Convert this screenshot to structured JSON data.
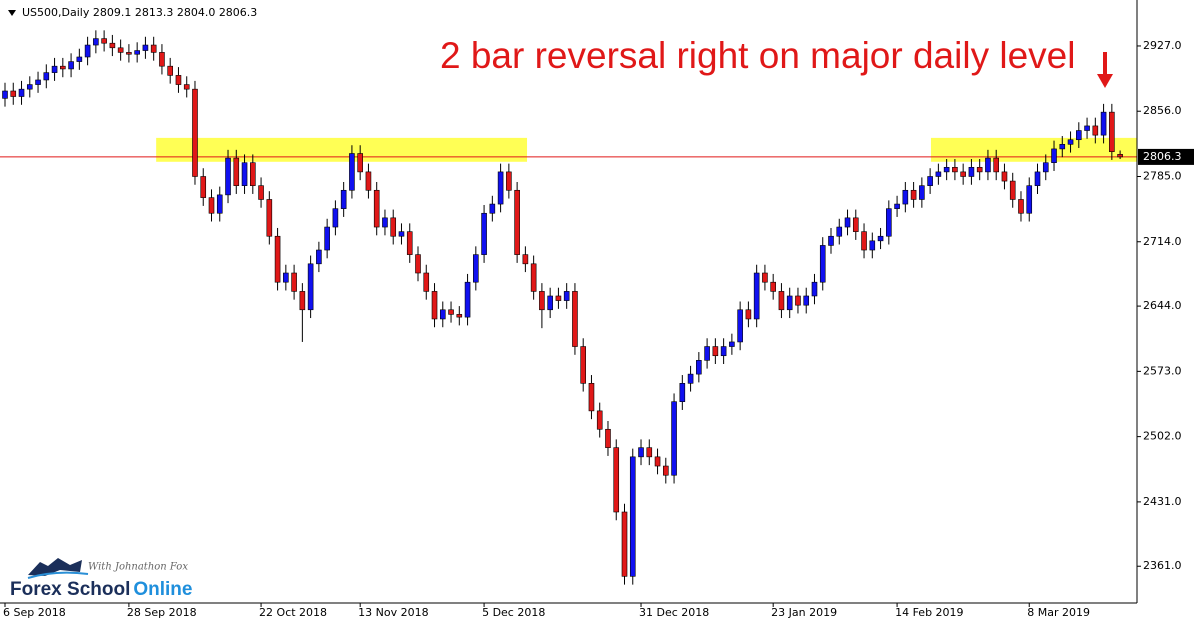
{
  "chart_data": {
    "type": "candlestick",
    "header": "US500,Daily  2809.1 2813.3 2804.0 2806.3",
    "annotation": "2 bar reversal right on major daily level",
    "logo": {
      "tagline": "With Johnathon Fox",
      "name": "Forex School",
      "name_accent": "Online"
    },
    "up_color": "#1010f0",
    "down_color": "#e01818",
    "zone_color": "#ffff55",
    "last_price_color": "#e01818",
    "ylim": [
      2321,
      2977
    ],
    "yticks": [
      {
        "value": 2361,
        "label": "2361.0"
      },
      {
        "value": 2431,
        "label": "2431.0"
      },
      {
        "value": 2502,
        "label": "2502.0"
      },
      {
        "value": 2573,
        "label": "2573.0"
      },
      {
        "value": 2644,
        "label": "2644.0"
      },
      {
        "value": 2714,
        "label": "2714.0"
      },
      {
        "value": 2785,
        "label": "2785.0"
      },
      {
        "value": 2856,
        "label": "2856.0"
      },
      {
        "value": 2927,
        "label": "2927.0"
      }
    ],
    "last_price": 2806.3,
    "zones": [
      {
        "low": 2801,
        "high": 2827
      },
      {
        "low": 2801,
        "high": 2827
      }
    ],
    "categories": [
      "6 Sep 2018",
      null,
      null,
      null,
      null,
      null,
      null,
      null,
      null,
      null,
      null,
      null,
      null,
      null,
      null,
      "28 Sep 2018",
      null,
      null,
      null,
      null,
      null,
      null,
      null,
      null,
      null,
      null,
      null,
      null,
      null,
      null,
      null,
      "22 Oct 2018",
      null,
      null,
      null,
      null,
      null,
      null,
      null,
      null,
      null,
      null,
      null,
      "13 Nov 2018",
      null,
      null,
      null,
      null,
      null,
      null,
      null,
      null,
      null,
      null,
      null,
      null,
      null,
      null,
      "5 Dec 2018",
      null,
      null,
      null,
      null,
      null,
      null,
      null,
      null,
      null,
      null,
      null,
      null,
      null,
      null,
      null,
      null,
      null,
      null,
      "31 Dec 2018",
      null,
      null,
      null,
      null,
      null,
      null,
      null,
      null,
      null,
      null,
      null,
      null,
      null,
      null,
      null,
      "23 Jan 2019",
      null,
      null,
      null,
      null,
      null,
      null,
      null,
      null,
      null,
      null,
      null,
      null,
      null,
      null,
      "14 Feb 2019",
      null,
      null,
      null,
      null,
      null,
      null,
      null,
      null,
      null,
      null,
      null,
      null,
      null,
      null,
      null,
      "8 Mar 2019",
      null,
      null,
      null,
      null,
      null,
      null,
      null,
      null,
      null,
      null,
      null
    ],
    "open": [
      2870,
      2878,
      2872,
      2880,
      2885,
      2890,
      2898,
      2905,
      2902,
      2910,
      2915,
      2928,
      2935,
      2930,
      2925,
      2920,
      2918,
      2922,
      2928,
      2920,
      2905,
      2895,
      2885,
      2880,
      2785,
      2762,
      2745,
      2765,
      2805,
      2775,
      2800,
      2775,
      2760,
      2720,
      2670,
      2680,
      2660,
      2640,
      2690,
      2705,
      2730,
      2750,
      2770,
      2810,
      2790,
      2770,
      2730,
      2740,
      2720,
      2725,
      2700,
      2680,
      2660,
      2630,
      2640,
      2635,
      2632,
      2670,
      2700,
      2745,
      2755,
      2790,
      2770,
      2700,
      2690,
      2660,
      2640,
      2655,
      2650,
      2660,
      2600,
      2560,
      2530,
      2510,
      2490,
      2420,
      2350,
      2480,
      2490,
      2480,
      2470,
      2460,
      2540,
      2560,
      2570,
      2585,
      2600,
      2590,
      2600,
      2605,
      2640,
      2630,
      2680,
      2670,
      2660,
      2640,
      2655,
      2645,
      2655,
      2670,
      2710,
      2720,
      2730,
      2740,
      2725,
      2705,
      2715,
      2720,
      2750,
      2755,
      2770,
      2760,
      2775,
      2785,
      2790,
      2795,
      2790,
      2785,
      2795,
      2790,
      2805,
      2790,
      2780,
      2760,
      2745,
      2775,
      2790,
      2800,
      2815,
      2820,
      2825,
      2835,
      2840,
      2830,
      2855,
      2809.1
    ],
    "high": [
      2887,
      2887,
      2889,
      2894,
      2899,
      2907,
      2914,
      2914,
      2919,
      2924,
      2937,
      2944,
      2944,
      2939,
      2934,
      2929,
      2931,
      2937,
      2937,
      2929,
      2914,
      2904,
      2894,
      2889,
      2794,
      2771,
      2774,
      2814,
      2814,
      2809,
      2809,
      2784,
      2769,
      2729,
      2689,
      2689,
      2669,
      2699,
      2714,
      2739,
      2759,
      2779,
      2819,
      2819,
      2799,
      2779,
      2749,
      2749,
      2734,
      2734,
      2709,
      2689,
      2669,
      2649,
      2649,
      2644,
      2679,
      2709,
      2754,
      2764,
      2799,
      2799,
      2779,
      2709,
      2699,
      2669,
      2664,
      2664,
      2669,
      2669,
      2609,
      2569,
      2539,
      2519,
      2499,
      2429,
      2489,
      2499,
      2499,
      2489,
      2479,
      2549,
      2569,
      2579,
      2594,
      2609,
      2609,
      2609,
      2614,
      2649,
      2649,
      2689,
      2689,
      2679,
      2669,
      2664,
      2664,
      2664,
      2679,
      2719,
      2729,
      2739,
      2749,
      2749,
      2734,
      2724,
      2729,
      2759,
      2764,
      2779,
      2779,
      2784,
      2794,
      2799,
      2804,
      2804,
      2799,
      2804,
      2804,
      2814,
      2814,
      2799,
      2789,
      2769,
      2784,
      2799,
      2809,
      2824,
      2829,
      2834,
      2844,
      2849,
      2849,
      2864,
      2864,
      2813.3
    ],
    "low": [
      2861,
      2863,
      2863,
      2871,
      2876,
      2881,
      2889,
      2893,
      2893,
      2901,
      2906,
      2919,
      2921,
      2916,
      2911,
      2909,
      2909,
      2913,
      2911,
      2896,
      2886,
      2876,
      2871,
      2776,
      2753,
      2736,
      2736,
      2756,
      2766,
      2766,
      2766,
      2751,
      2711,
      2661,
      2661,
      2651,
      2605,
      2631,
      2681,
      2696,
      2721,
      2741,
      2761,
      2781,
      2761,
      2721,
      2721,
      2711,
      2711,
      2691,
      2671,
      2651,
      2621,
      2621,
      2626,
      2623,
      2623,
      2661,
      2691,
      2736,
      2746,
      2761,
      2691,
      2681,
      2651,
      2620,
      2631,
      2641,
      2641,
      2591,
      2551,
      2521,
      2501,
      2481,
      2411,
      2341,
      2341,
      2471,
      2471,
      2461,
      2451,
      2451,
      2531,
      2551,
      2561,
      2576,
      2581,
      2581,
      2591,
      2596,
      2621,
      2621,
      2661,
      2651,
      2631,
      2631,
      2636,
      2636,
      2646,
      2661,
      2701,
      2711,
      2721,
      2716,
      2696,
      2696,
      2706,
      2711,
      2741,
      2746,
      2751,
      2751,
      2766,
      2776,
      2781,
      2781,
      2776,
      2776,
      2781,
      2781,
      2781,
      2771,
      2751,
      2736,
      2736,
      2766,
      2781,
      2791,
      2806,
      2811,
      2816,
      2826,
      2821,
      2821,
      2803,
      2804
    ],
    "close": [
      2878,
      2872,
      2880,
      2885,
      2890,
      2898,
      2905,
      2902,
      2910,
      2915,
      2928,
      2935,
      2930,
      2925,
      2920,
      2918,
      2922,
      2928,
      2920,
      2905,
      2895,
      2885,
      2880,
      2785,
      2762,
      2745,
      2765,
      2805,
      2775,
      2800,
      2775,
      2760,
      2720,
      2670,
      2680,
      2660,
      2640,
      2690,
      2705,
      2730,
      2750,
      2770,
      2810,
      2790,
      2770,
      2730,
      2740,
      2720,
      2725,
      2700,
      2680,
      2660,
      2630,
      2640,
      2635,
      2632,
      2670,
      2700,
      2745,
      2755,
      2790,
      2770,
      2700,
      2690,
      2660,
      2640,
      2655,
      2650,
      2660,
      2600,
      2560,
      2530,
      2510,
      2490,
      2420,
      2350,
      2480,
      2490,
      2480,
      2470,
      2460,
      2540,
      2560,
      2570,
      2585,
      2600,
      2590,
      2600,
      2605,
      2640,
      2630,
      2680,
      2670,
      2660,
      2640,
      2655,
      2645,
      2655,
      2670,
      2710,
      2720,
      2730,
      2740,
      2725,
      2705,
      2715,
      2720,
      2750,
      2755,
      2770,
      2760,
      2775,
      2785,
      2790,
      2795,
      2790,
      2785,
      2795,
      2790,
      2805,
      2790,
      2780,
      2760,
      2745,
      2775,
      2790,
      2800,
      2815,
      2820,
      2825,
      2835,
      2840,
      2830,
      2855,
      2812,
      2806.3
    ]
  }
}
